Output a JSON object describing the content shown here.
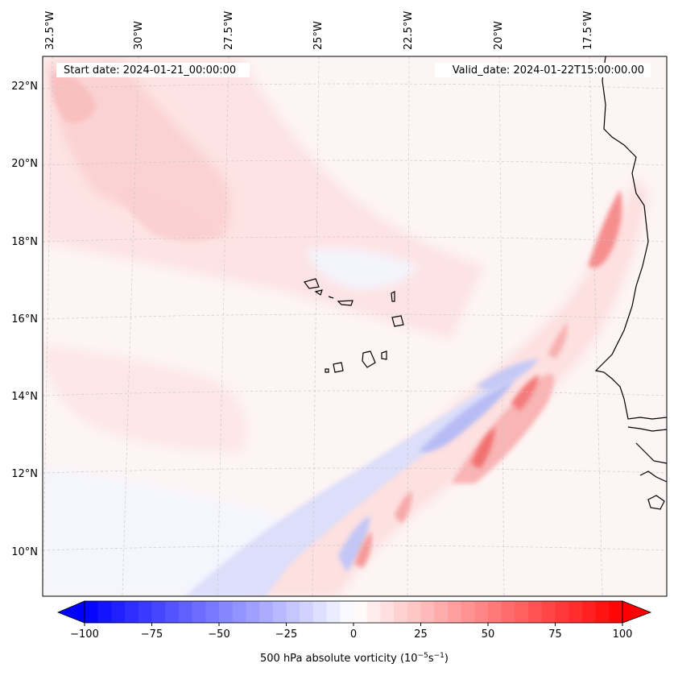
{
  "map": {
    "start_date": "Start date: 2024-01-21_00:00:00",
    "valid_date": "Valid_date: 2024-01-22T15:00:00.00",
    "lon_labels": [
      "32.5°W",
      "30°W",
      "27.5°W",
      "25°W",
      "22.5°W",
      "20°W",
      "17.5°W"
    ],
    "lat_labels": [
      "22°N",
      "20°N",
      "18°N",
      "16°N",
      "14°N",
      "12°N",
      "10°N"
    ],
    "colors": {
      "coast": "#000000",
      "grid": "#bbbbbb",
      "positive": "#ff0000",
      "negative": "#0000ff",
      "neutral": "#ffffff"
    }
  },
  "colorbar": {
    "label": "500 hPa absolute vorticity (10",
    "unit_exp1": "−5",
    "unit_mid": "s",
    "unit_exp2": "−1",
    "unit_close": ")",
    "min": -100,
    "max": 100,
    "step": 5,
    "ticks": [
      "−100",
      "−75",
      "−50",
      "−25",
      "0",
      "25",
      "50",
      "75",
      "100"
    ]
  }
}
